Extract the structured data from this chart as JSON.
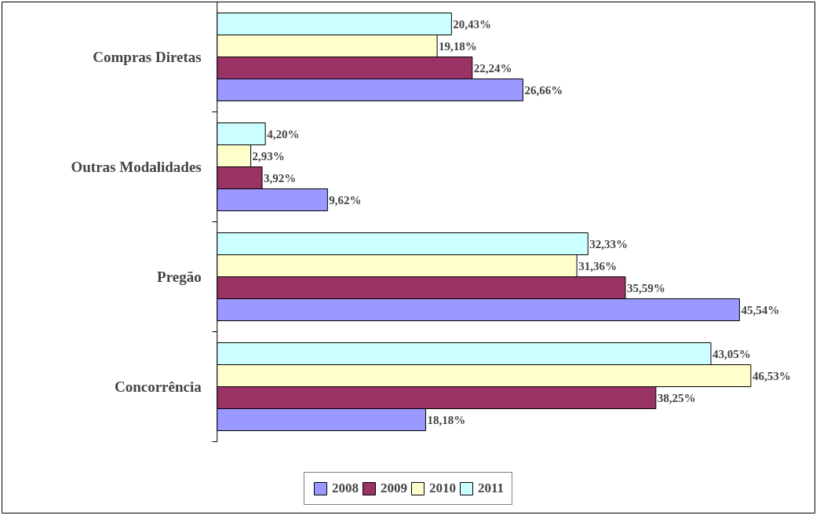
{
  "chart_data": {
    "type": "bar",
    "orientation": "horizontal",
    "categories": [
      "Compras Diretas",
      "Outras Modalidades",
      "Pregão",
      "Concorrência"
    ],
    "series": [
      {
        "name": "2008",
        "color": "#9999ff",
        "values": [
          26.66,
          9.62,
          45.54,
          18.18
        ],
        "value_labels": [
          "26,66%",
          "9,62%",
          "45,54%",
          "18,18%"
        ]
      },
      {
        "name": "2009",
        "color": "#993366",
        "values": [
          22.24,
          3.92,
          35.59,
          38.25
        ],
        "value_labels": [
          "22,24%",
          "3,92%",
          "35,59%",
          "38,25%"
        ]
      },
      {
        "name": "2010",
        "color": "#ffffcc",
        "values": [
          19.18,
          2.93,
          31.36,
          46.53
        ],
        "value_labels": [
          "19,18%",
          "2,93%",
          "31,36%",
          "46,53%"
        ]
      },
      {
        "name": "2011",
        "color": "#ccffff",
        "values": [
          20.43,
          4.2,
          32.33,
          43.05
        ],
        "value_labels": [
          "20,43%",
          "4,20%",
          "32,33%",
          "43,05%"
        ]
      }
    ],
    "legend": "bottom",
    "grid": false
  }
}
